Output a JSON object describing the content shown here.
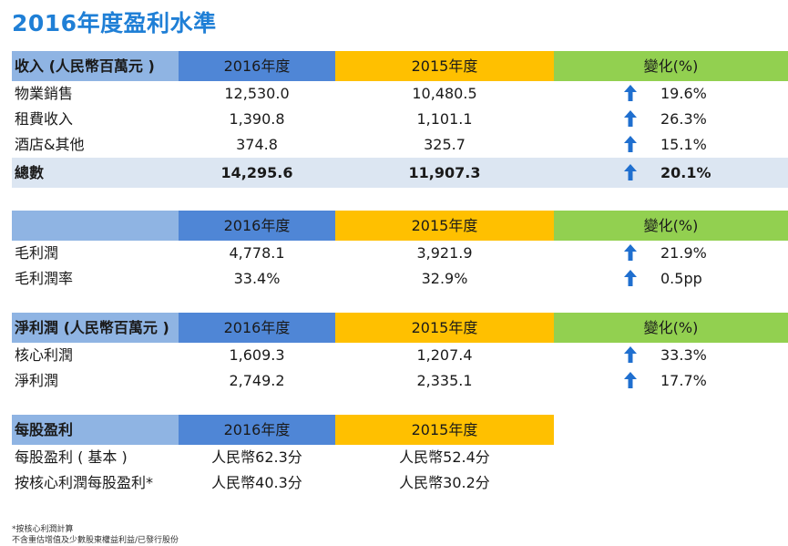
{
  "title": "2016年度盈利水準",
  "colors": {
    "blue_header": "#4f86d6",
    "light_blue": "#8fb4e3",
    "gold": "#ffc000",
    "green": "#92d050",
    "arrow": "#1f6fcf",
    "title": "#1f7fd6"
  },
  "revenue": {
    "header": {
      "label": "收入 (人民幣百萬元 )",
      "y2016": "2016年度",
      "y2015": "2015年度",
      "change": "變化(%)"
    },
    "rows": [
      {
        "label": "物業銷售",
        "y2016": "12,530.0",
        "y2015": "10,480.5",
        "change": "19.6%",
        "arrow": "up-arrow-icon"
      },
      {
        "label": "租費收入",
        "y2016": "1,390.8",
        "y2015": "1,101.1",
        "change": "26.3%",
        "arrow": "up-arrow-icon"
      },
      {
        "label": "酒店&其他",
        "y2016": "374.8",
        "y2015": "325.7",
        "change": "15.1%",
        "arrow": "up-arrow-icon"
      }
    ],
    "total": {
      "label": "總數",
      "y2016": "14,295.6",
      "y2015": "11,907.3",
      "change": "20.1%",
      "arrow": "up-arrow-icon"
    }
  },
  "gross": {
    "header": {
      "label": "",
      "y2016": "2016年度",
      "y2015": "2015年度",
      "change": "變化(%)"
    },
    "rows": [
      {
        "label": "毛利潤",
        "y2016": "4,778.1",
        "y2015": "3,921.9",
        "change": "21.9%",
        "arrow": "up-arrow-icon"
      },
      {
        "label": "毛利潤率",
        "y2016": "33.4%",
        "y2015": "32.9%",
        "change": "0.5pp",
        "arrow": "up-arrow-icon"
      }
    ]
  },
  "net": {
    "header": {
      "label": "淨利潤 (人民幣百萬元 )",
      "y2016": "2016年度",
      "y2015": "2015年度",
      "change": "變化(%)"
    },
    "rows": [
      {
        "label": "核心利潤",
        "y2016": "1,609.3",
        "y2015": "1,207.4",
        "change": "33.3%",
        "arrow": "up-arrow-icon"
      },
      {
        "label": "淨利潤",
        "y2016": "2,749.2",
        "y2015": "2,335.1",
        "change": "17.7%",
        "arrow": "up-arrow-icon"
      }
    ]
  },
  "eps": {
    "header": {
      "label": "每股盈利",
      "y2016": "2016年度",
      "y2015": "2015年度"
    },
    "rows": [
      {
        "label": "每股盈利 ( 基本 )",
        "y2016": "人民幣62.3分",
        "y2015": "人民幣52.4分"
      },
      {
        "label": "按核心利潤每股盈利*",
        "y2016": "人民幣40.3分",
        "y2015": "人民幣30.2分"
      }
    ]
  },
  "footnotes": [
    "*按核心利潤計算",
    "不含重估增值及少數股東權益利益/已發行股份"
  ]
}
